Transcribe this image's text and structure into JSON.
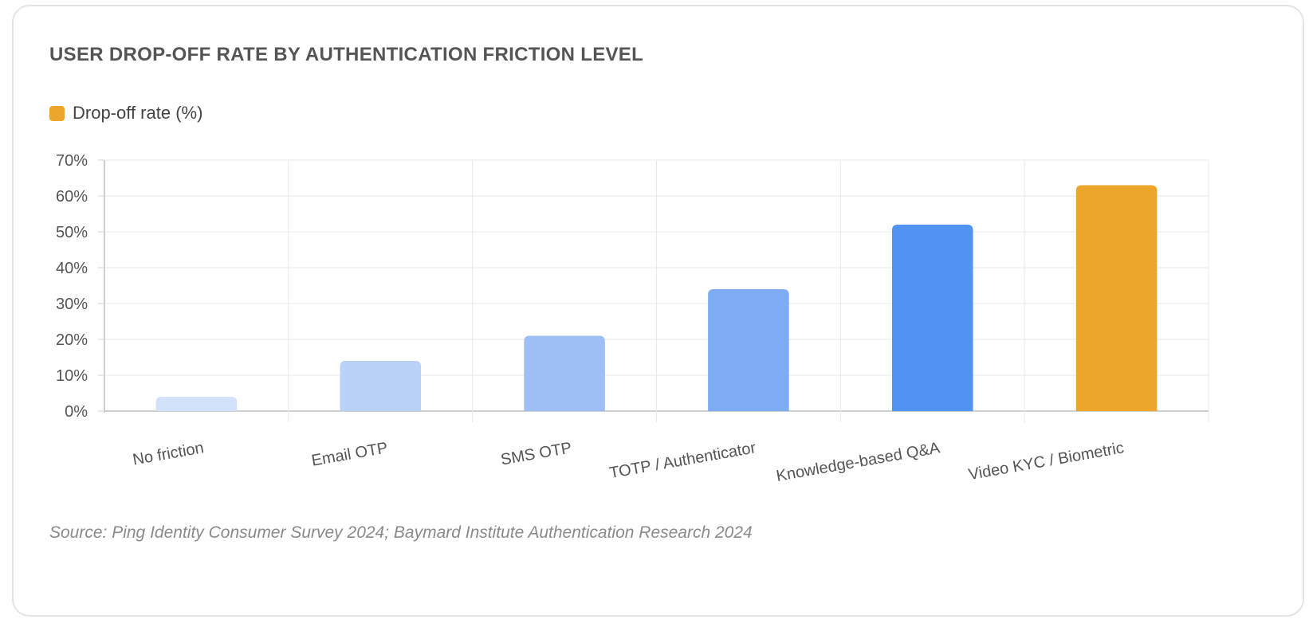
{
  "chart_data": {
    "type": "bar",
    "title": "USER DROP-OFF RATE BY AUTHENTICATION FRICTION LEVEL",
    "categories": [
      "No friction",
      "Email OTP",
      "SMS OTP",
      "TOTP / Authenticator",
      "Knowledge-based Q&A",
      "Video KYC / Biometric"
    ],
    "series": [
      {
        "name": "Drop-off rate (%)",
        "values": [
          4,
          14,
          21,
          34,
          52,
          63
        ],
        "colors": [
          "#d3e2fb",
          "#bad2f8",
          "#9dbff6",
          "#7eacf4",
          "#5293f2",
          "#eea52b"
        ]
      }
    ],
    "legend_color": "#eea52b",
    "legend_position": "top-left",
    "ylim": [
      0,
      70
    ],
    "yticks": [
      "0%",
      "10%",
      "20%",
      "30%",
      "40%",
      "50%",
      "60%",
      "70%"
    ],
    "xlabel": "",
    "ylabel": "",
    "grid": true,
    "source": "Source: Ping Identity Consumer Survey 2024; Baymard Institute Authentication Research 2024"
  }
}
